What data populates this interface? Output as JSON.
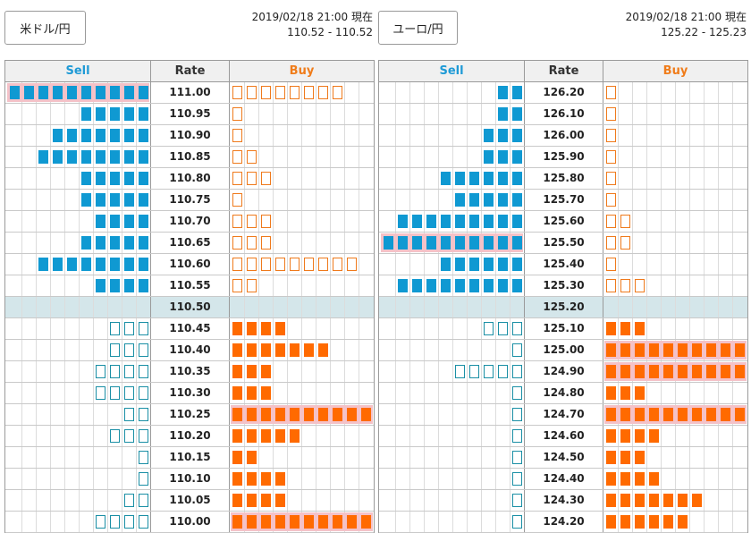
{
  "headers": {
    "sell": "Sell",
    "rate": "Rate",
    "buy": "Buy"
  },
  "panels": [
    {
      "id": "usd",
      "pair_label": "米ドル/円",
      "timestamp": "2019/02/18 21:00 現在",
      "quote": "110.52 - 110.52",
      "current_rate": "110.50",
      "rows": [
        {
          "rate": "111.00",
          "sell_filled": 10,
          "sell_open": 0,
          "buy_filled": 0,
          "buy_open": 8,
          "sell_hl": true,
          "buy_hl": false
        },
        {
          "rate": "110.95",
          "sell_filled": 5,
          "sell_open": 0,
          "buy_filled": 0,
          "buy_open": 1,
          "sell_hl": false,
          "buy_hl": false
        },
        {
          "rate": "110.90",
          "sell_filled": 7,
          "sell_open": 0,
          "buy_filled": 0,
          "buy_open": 1,
          "sell_hl": false,
          "buy_hl": false
        },
        {
          "rate": "110.85",
          "sell_filled": 8,
          "sell_open": 0,
          "buy_filled": 0,
          "buy_open": 2,
          "sell_hl": false,
          "buy_hl": false
        },
        {
          "rate": "110.80",
          "sell_filled": 5,
          "sell_open": 0,
          "buy_filled": 0,
          "buy_open": 3,
          "sell_hl": false,
          "buy_hl": false
        },
        {
          "rate": "110.75",
          "sell_filled": 5,
          "sell_open": 0,
          "buy_filled": 0,
          "buy_open": 1,
          "sell_hl": false,
          "buy_hl": false
        },
        {
          "rate": "110.70",
          "sell_filled": 4,
          "sell_open": 0,
          "buy_filled": 0,
          "buy_open": 3,
          "sell_hl": false,
          "buy_hl": false
        },
        {
          "rate": "110.65",
          "sell_filled": 5,
          "sell_open": 0,
          "buy_filled": 0,
          "buy_open": 3,
          "sell_hl": false,
          "buy_hl": false
        },
        {
          "rate": "110.60",
          "sell_filled": 8,
          "sell_open": 0,
          "buy_filled": 0,
          "buy_open": 9,
          "sell_hl": false,
          "buy_hl": false
        },
        {
          "rate": "110.55",
          "sell_filled": 4,
          "sell_open": 0,
          "buy_filled": 0,
          "buy_open": 2,
          "sell_hl": false,
          "buy_hl": false
        },
        {
          "rate": "110.50",
          "current": true
        },
        {
          "rate": "110.45",
          "sell_filled": 0,
          "sell_open": 3,
          "buy_filled": 4,
          "buy_open": 0,
          "sell_hl": false,
          "buy_hl": false
        },
        {
          "rate": "110.40",
          "sell_filled": 0,
          "sell_open": 3,
          "buy_filled": 7,
          "buy_open": 0,
          "sell_hl": false,
          "buy_hl": false
        },
        {
          "rate": "110.35",
          "sell_filled": 0,
          "sell_open": 4,
          "buy_filled": 3,
          "buy_open": 0,
          "sell_hl": false,
          "buy_hl": false
        },
        {
          "rate": "110.30",
          "sell_filled": 0,
          "sell_open": 4,
          "buy_filled": 3,
          "buy_open": 0,
          "sell_hl": false,
          "buy_hl": false
        },
        {
          "rate": "110.25",
          "sell_filled": 0,
          "sell_open": 2,
          "buy_filled": 10,
          "buy_open": 0,
          "sell_hl": false,
          "buy_hl": true
        },
        {
          "rate": "110.20",
          "sell_filled": 0,
          "sell_open": 3,
          "buy_filled": 5,
          "buy_open": 0,
          "sell_hl": false,
          "buy_hl": false
        },
        {
          "rate": "110.15",
          "sell_filled": 0,
          "sell_open": 1,
          "buy_filled": 2,
          "buy_open": 0,
          "sell_hl": false,
          "buy_hl": false
        },
        {
          "rate": "110.10",
          "sell_filled": 0,
          "sell_open": 1,
          "buy_filled": 4,
          "buy_open": 0,
          "sell_hl": false,
          "buy_hl": false
        },
        {
          "rate": "110.05",
          "sell_filled": 0,
          "sell_open": 2,
          "buy_filled": 4,
          "buy_open": 0,
          "sell_hl": false,
          "buy_hl": false
        },
        {
          "rate": "110.00",
          "sell_filled": 0,
          "sell_open": 4,
          "buy_filled": 10,
          "buy_open": 0,
          "sell_hl": false,
          "buy_hl": true
        }
      ]
    },
    {
      "id": "eur",
      "pair_label": "ユーロ/円",
      "timestamp": "2019/02/18 21:00 現在",
      "quote": "125.22 - 125.23",
      "current_rate": "125.20",
      "rows": [
        {
          "rate": "126.20",
          "sell_filled": 2,
          "sell_open": 0,
          "buy_filled": 0,
          "buy_open": 1,
          "sell_hl": false,
          "buy_hl": false
        },
        {
          "rate": "126.10",
          "sell_filled": 2,
          "sell_open": 0,
          "buy_filled": 0,
          "buy_open": 1,
          "sell_hl": false,
          "buy_hl": false
        },
        {
          "rate": "126.00",
          "sell_filled": 3,
          "sell_open": 0,
          "buy_filled": 0,
          "buy_open": 1,
          "sell_hl": false,
          "buy_hl": false
        },
        {
          "rate": "125.90",
          "sell_filled": 3,
          "sell_open": 0,
          "buy_filled": 0,
          "buy_open": 1,
          "sell_hl": false,
          "buy_hl": false
        },
        {
          "rate": "125.80",
          "sell_filled": 6,
          "sell_open": 0,
          "buy_filled": 0,
          "buy_open": 1,
          "sell_hl": false,
          "buy_hl": false
        },
        {
          "rate": "125.70",
          "sell_filled": 5,
          "sell_open": 0,
          "buy_filled": 0,
          "buy_open": 1,
          "sell_hl": false,
          "buy_hl": false
        },
        {
          "rate": "125.60",
          "sell_filled": 9,
          "sell_open": 0,
          "buy_filled": 0,
          "buy_open": 2,
          "sell_hl": false,
          "buy_hl": false
        },
        {
          "rate": "125.50",
          "sell_filled": 10,
          "sell_open": 0,
          "buy_filled": 0,
          "buy_open": 2,
          "sell_hl": true,
          "buy_hl": false
        },
        {
          "rate": "125.40",
          "sell_filled": 6,
          "sell_open": 0,
          "buy_filled": 0,
          "buy_open": 1,
          "sell_hl": false,
          "buy_hl": false
        },
        {
          "rate": "125.30",
          "sell_filled": 9,
          "sell_open": 0,
          "buy_filled": 0,
          "buy_open": 3,
          "sell_hl": false,
          "buy_hl": false
        },
        {
          "rate": "125.20",
          "current": true
        },
        {
          "rate": "125.10",
          "sell_filled": 0,
          "sell_open": 3,
          "buy_filled": 3,
          "buy_open": 0,
          "sell_hl": false,
          "buy_hl": false
        },
        {
          "rate": "125.00",
          "sell_filled": 0,
          "sell_open": 1,
          "buy_filled": 10,
          "buy_open": 0,
          "sell_hl": false,
          "buy_hl": true
        },
        {
          "rate": "124.90",
          "sell_filled": 0,
          "sell_open": 5,
          "buy_filled": 10,
          "buy_open": 0,
          "sell_hl": false,
          "buy_hl": true
        },
        {
          "rate": "124.80",
          "sell_filled": 0,
          "sell_open": 1,
          "buy_filled": 3,
          "buy_open": 0,
          "sell_hl": false,
          "buy_hl": false
        },
        {
          "rate": "124.70",
          "sell_filled": 0,
          "sell_open": 1,
          "buy_filled": 10,
          "buy_open": 0,
          "sell_hl": false,
          "buy_hl": true
        },
        {
          "rate": "124.60",
          "sell_filled": 0,
          "sell_open": 1,
          "buy_filled": 4,
          "buy_open": 0,
          "sell_hl": false,
          "buy_hl": false
        },
        {
          "rate": "124.50",
          "sell_filled": 0,
          "sell_open": 1,
          "buy_filled": 3,
          "buy_open": 0,
          "sell_hl": false,
          "buy_hl": false
        },
        {
          "rate": "124.40",
          "sell_filled": 0,
          "sell_open": 1,
          "buy_filled": 4,
          "buy_open": 0,
          "sell_hl": false,
          "buy_hl": false
        },
        {
          "rate": "124.30",
          "sell_filled": 0,
          "sell_open": 1,
          "buy_filled": 7,
          "buy_open": 0,
          "sell_hl": false,
          "buy_hl": false
        },
        {
          "rate": "124.20",
          "sell_filled": 0,
          "sell_open": 1,
          "buy_filled": 6,
          "buy_open": 0,
          "sell_hl": false,
          "buy_hl": false
        }
      ]
    }
  ]
}
